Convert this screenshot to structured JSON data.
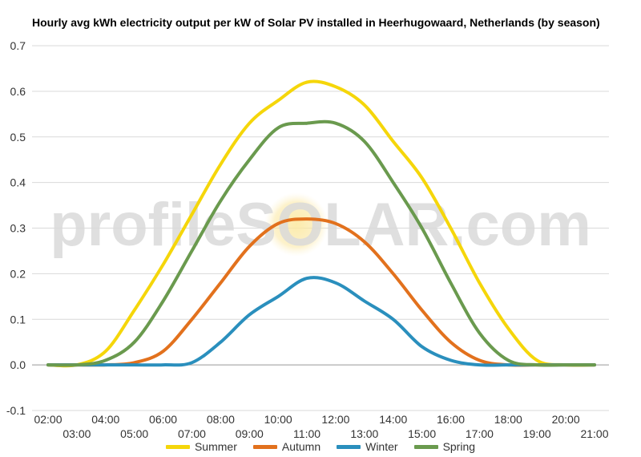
{
  "chart_data": {
    "type": "line",
    "title": "Hourly avg kWh electricity output per kW of Solar PV installed in Heerhugowaard, Netherlands (by season)",
    "watermark": "profileSOLAR.com",
    "xlabel": "",
    "ylabel": "",
    "ylim": [
      -0.1,
      0.7
    ],
    "yticks": [
      "-0.1",
      "0.0",
      "0.1",
      "0.2",
      "0.3",
      "0.4",
      "0.5",
      "0.6",
      "0.7"
    ],
    "xlim": [
      2,
      21
    ],
    "xticks_top": [
      "02:00",
      "04:00",
      "06:00",
      "08:00",
      "10:00",
      "12:00",
      "14:00",
      "16:00",
      "18:00",
      "20:00"
    ],
    "xticks_bottom": [
      "03:00",
      "05:00",
      "07:00",
      "09:00",
      "11:00",
      "13:00",
      "15:00",
      "17:00",
      "19:00",
      "21:00"
    ],
    "grid": true,
    "legend_position": "bottom",
    "x": [
      2,
      3,
      4,
      5,
      6,
      7,
      8,
      9,
      10,
      11,
      12,
      13,
      14,
      15,
      16,
      17,
      18,
      19,
      20,
      21
    ],
    "series": [
      {
        "name": "Summer",
        "color": "#f5d60a",
        "values": [
          0.0,
          0.0,
          0.03,
          0.12,
          0.22,
          0.33,
          0.44,
          0.53,
          0.58,
          0.62,
          0.61,
          0.57,
          0.49,
          0.41,
          0.3,
          0.18,
          0.08,
          0.01,
          0.0,
          0.0
        ]
      },
      {
        "name": "Autumn",
        "color": "#e2711d",
        "values": [
          0.0,
          0.0,
          0.0,
          0.005,
          0.03,
          0.1,
          0.18,
          0.26,
          0.31,
          0.32,
          0.31,
          0.27,
          0.2,
          0.12,
          0.05,
          0.01,
          0.0,
          0.0,
          0.0,
          0.0
        ]
      },
      {
        "name": "Winter",
        "color": "#2a8fbd",
        "values": [
          0.0,
          0.0,
          0.0,
          0.0,
          0.0,
          0.005,
          0.05,
          0.11,
          0.15,
          0.19,
          0.18,
          0.14,
          0.1,
          0.04,
          0.01,
          0.0,
          0.0,
          0.0,
          0.0,
          0.0
        ]
      },
      {
        "name": "Spring",
        "color": "#6a9a4e",
        "values": [
          0.0,
          0.0,
          0.01,
          0.05,
          0.14,
          0.25,
          0.36,
          0.45,
          0.52,
          0.53,
          0.53,
          0.49,
          0.4,
          0.3,
          0.18,
          0.07,
          0.01,
          0.0,
          0.0,
          0.0
        ]
      }
    ]
  }
}
